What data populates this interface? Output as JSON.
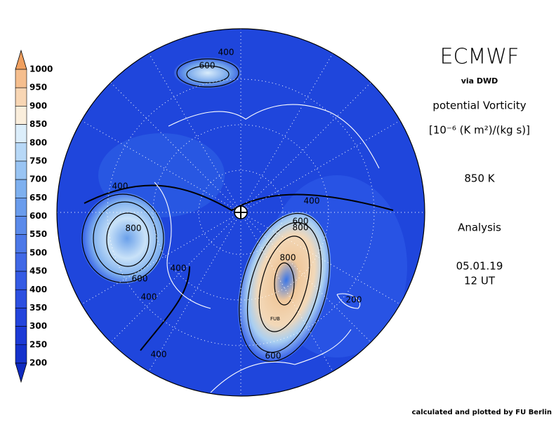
{
  "header": {
    "title": "ECMWF",
    "source": "via DWD",
    "quantity": "potential Vorticity",
    "unit": "[10⁻⁶ (K m²)/(kg s)]",
    "level": "850 K",
    "kind": "Analysis",
    "date": "05.01.19",
    "time": "12 UT"
  },
  "colorbar": {
    "labels": [
      "1000",
      "950",
      "900",
      "850",
      "800",
      "750",
      "700",
      "650",
      "600",
      "550",
      "500",
      "450",
      "400",
      "350",
      "300",
      "250",
      "200"
    ]
  },
  "map": {
    "contour_labels": [
      "400",
      "600",
      "400",
      "800",
      "600",
      "400",
      "400",
      "400",
      "600",
      "800",
      "800",
      "FUB",
      "600",
      "400",
      "200"
    ]
  },
  "footer": "calculated and plotted by FU Berlin"
}
